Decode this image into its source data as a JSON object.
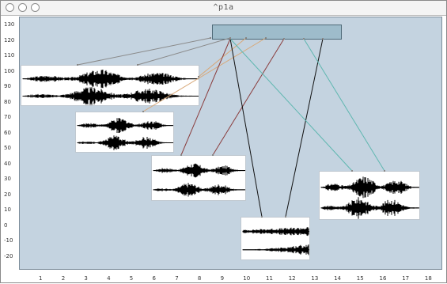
{
  "window": {
    "title": "^p1a"
  },
  "axes": {
    "y_ticks": [
      "130",
      "120",
      "110",
      "100",
      "90",
      "80",
      "70",
      "60",
      "50",
      "40",
      "30",
      "20",
      "10",
      "0",
      "-10",
      "-20"
    ],
    "x_ticks": [
      "1",
      "2",
      "3",
      "4",
      "5",
      "6",
      "7",
      "8",
      "9",
      "10",
      "11",
      "12",
      "13",
      "14",
      "15",
      "16",
      "17",
      "18"
    ]
  },
  "colors": {
    "plot_bg": "#c4d3e0",
    "header_fill": "#9ebccb",
    "link_gray": "#8a8a8a",
    "link_tan": "#d8a878",
    "link_brown": "#8a3c3c",
    "link_black": "#111111",
    "link_teal": "#5fb7b0"
  }
}
